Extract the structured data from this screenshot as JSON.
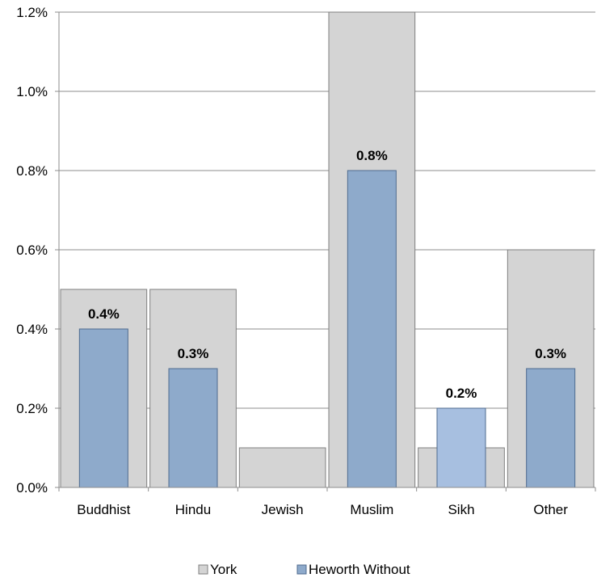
{
  "chart_data": {
    "type": "bar",
    "categories": [
      "Buddhist",
      "Hindu",
      "Jewish",
      "Muslim",
      "Sikh",
      "Other"
    ],
    "series": [
      {
        "name": "York",
        "values": [
          0.5,
          0.5,
          0.1,
          1.2,
          0.1,
          0.6
        ],
        "color": "#d4d4d4"
      },
      {
        "name": "Heworth Without",
        "values": [
          0.4,
          0.3,
          0.0,
          0.8,
          0.2,
          0.3
        ],
        "color": "#8eaacb",
        "labels": [
          "0.4%",
          "0.3%",
          "",
          "0.8%",
          "0.2%",
          "0.3%"
        ]
      }
    ],
    "ylim": [
      0,
      1.2
    ],
    "yticks": [
      "0.0%",
      "0.2%",
      "0.4%",
      "0.6%",
      "0.8%",
      "1.0%",
      "1.2%"
    ],
    "ytick_values": [
      0,
      0.2,
      0.4,
      0.6,
      0.8,
      1.0,
      1.2
    ],
    "grid": true,
    "legend": "bottom-center",
    "overlap_colors": {
      "Sikh": "#a7bfe0"
    }
  }
}
